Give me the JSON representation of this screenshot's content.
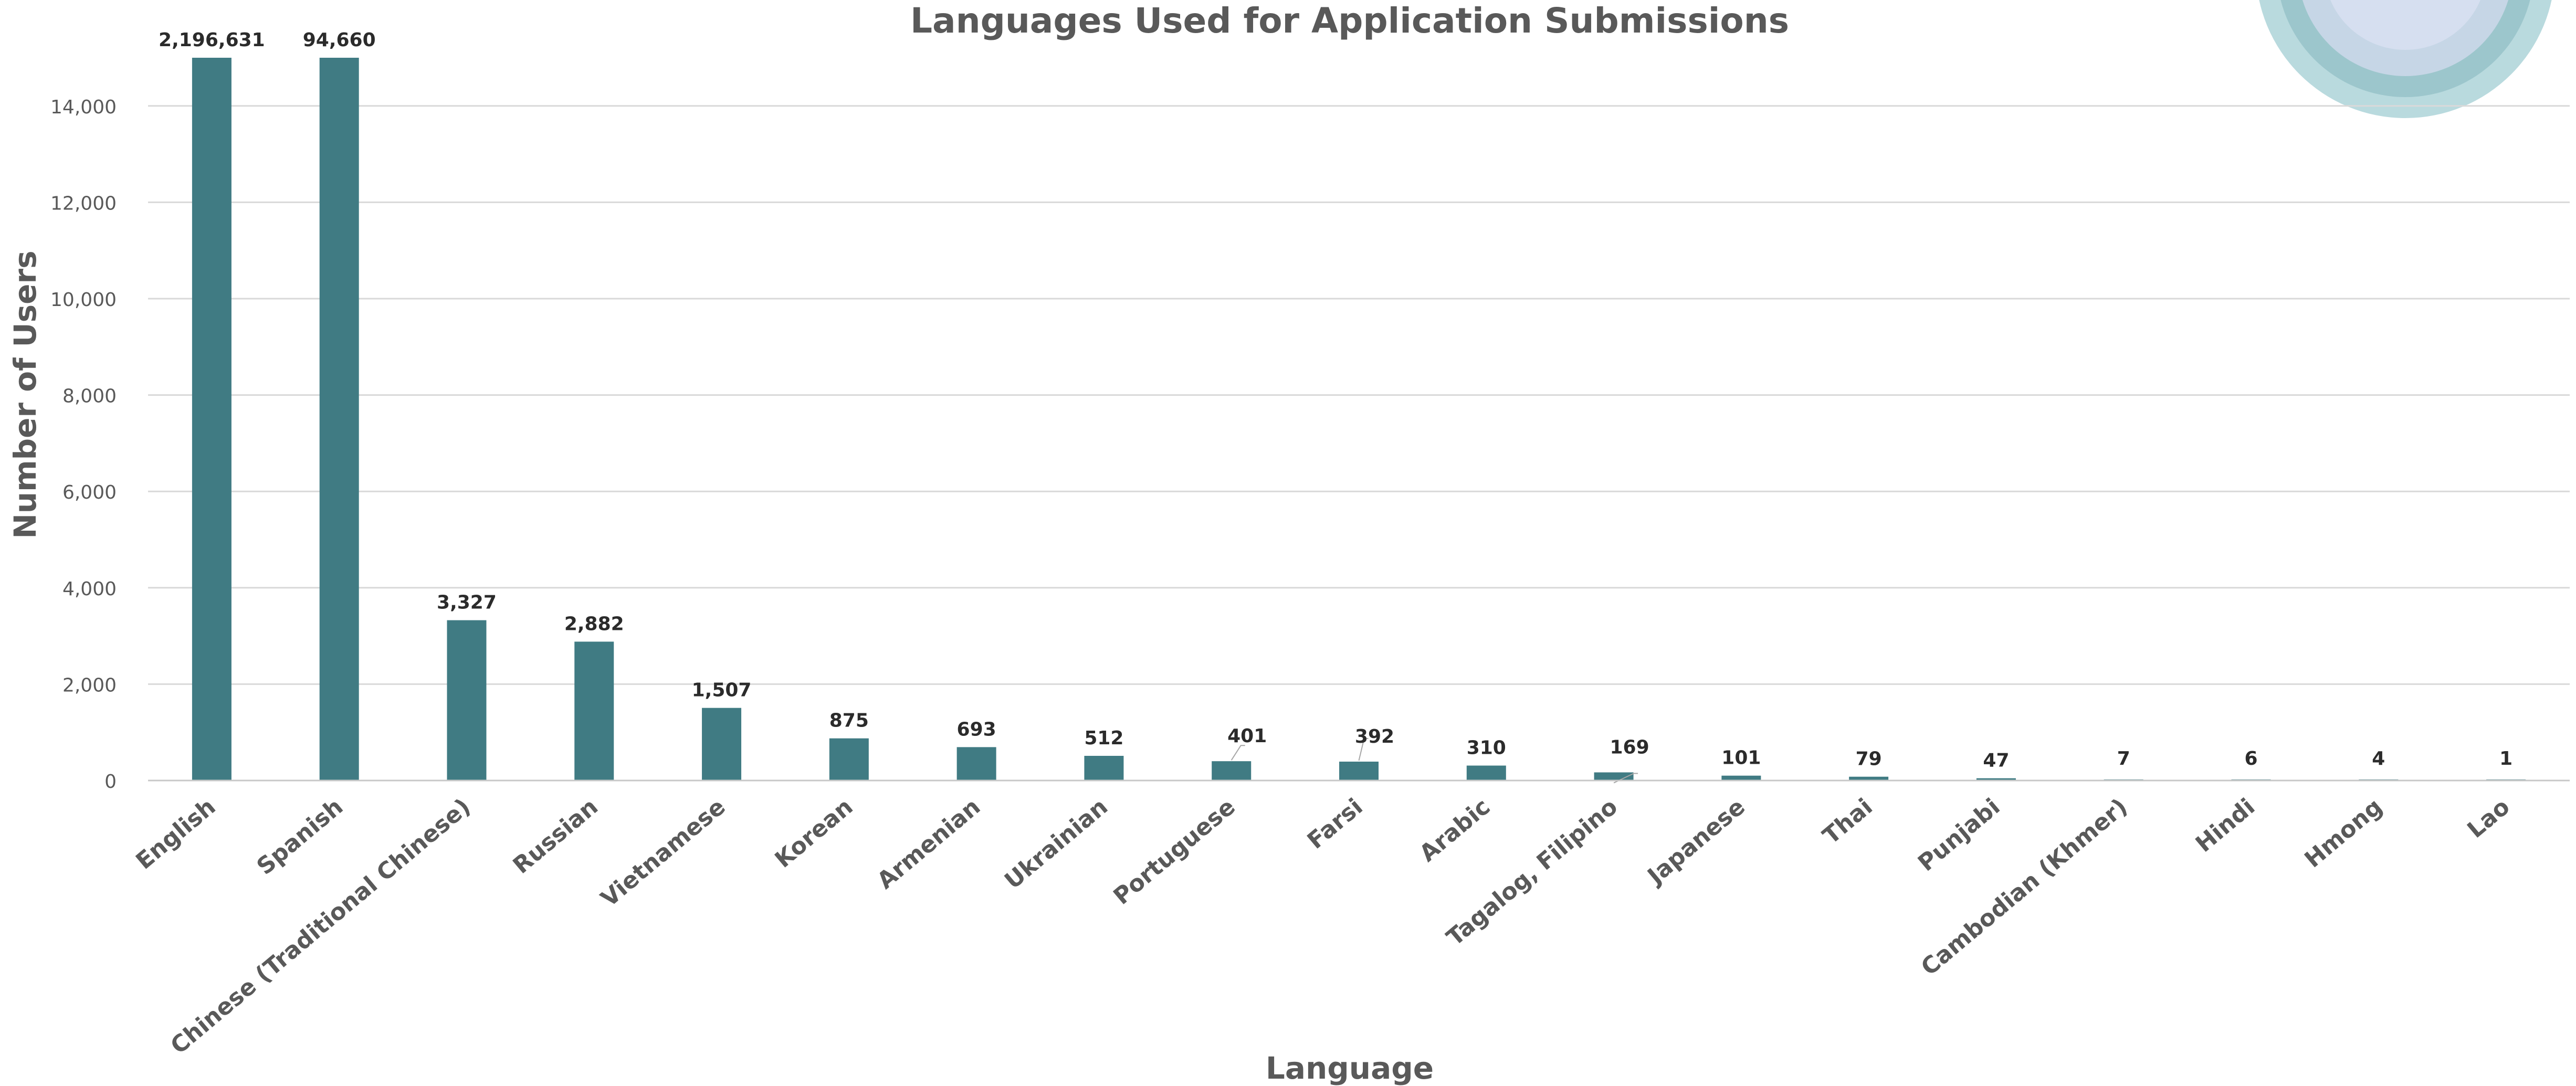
{
  "chart_data": {
    "type": "bar",
    "title": "Languages Used for Application Submissions",
    "xlabel": "Language",
    "ylabel": "Number of Users",
    "ylim": [
      0,
      15000
    ],
    "yticks": [
      0,
      2000,
      4000,
      6000,
      8000,
      10000,
      12000,
      14000
    ],
    "ytick_labels": [
      "0",
      "2,000",
      "4,000",
      "6,000",
      "8,000",
      "10,000",
      "12,000",
      "14,000"
    ],
    "grid": true,
    "legend": "none",
    "bar_color": "#407B83",
    "categories": [
      "English",
      "Spanish",
      "Chinese (Traditional Chinese)",
      "Russian",
      "Vietnamese",
      "Korean",
      "Armenian",
      "Ukrainian",
      "Portuguese",
      "Farsi",
      "Arabic",
      "Tagalog, Filipino",
      "Japanese",
      "Thai",
      "Punjabi",
      "Cambodian (Khmer)",
      "Hindi",
      "Hmong",
      "Lao"
    ],
    "values": [
      2196631,
      94660,
      3327,
      2882,
      1507,
      875,
      693,
      512,
      401,
      392,
      310,
      169,
      101,
      79,
      47,
      7,
      6,
      4,
      1
    ],
    "data_labels": [
      "2,196,631",
      "94,660",
      "3,327",
      "2,882",
      "1,507",
      "875",
      "693",
      "512",
      "401",
      "392",
      "310",
      "169",
      "101",
      "79",
      "47",
      "7",
      "6",
      "4",
      "1"
    ]
  }
}
